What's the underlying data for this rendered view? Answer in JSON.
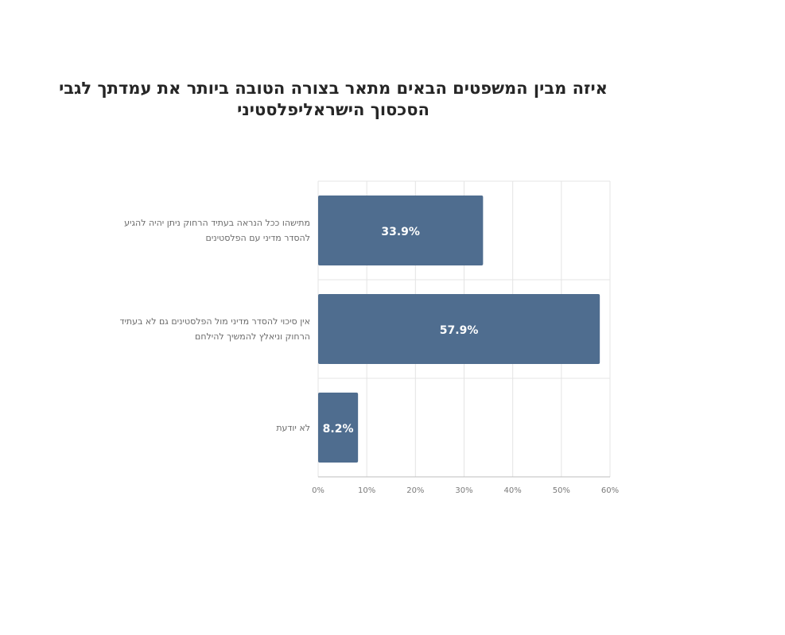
{
  "chart_data": {
    "type": "bar",
    "orientation": "horizontal",
    "title": "איזה מבין המשפטים הבאים מתאר בצורה הטובה ביותר את עמדתך לגבי הסכסוך הישראליפלסטיני",
    "categories": [
      "מתישהו ככל הנראה בעתיד הרחוק ניתן יהיה להגיע להסדר מדיני עם הפלסטינים",
      "אין סיכוי להסדר מדיני מול הפלסטינים גם לא בעתיד הרחוק וניאלץ להמשיך להילחם",
      "לא יודעת"
    ],
    "values": [
      33.9,
      57.9,
      8.2
    ],
    "value_labels": [
      "33.9%",
      "57.9%",
      "8.2%"
    ],
    "xlim": [
      0,
      60
    ],
    "xticks": [
      0,
      10,
      20,
      30,
      40,
      50,
      60
    ],
    "xtick_labels": [
      "0%",
      "10%",
      "20%",
      "30%",
      "40%",
      "50%",
      "60%"
    ],
    "xlabel": "",
    "ylabel": "",
    "grid": true,
    "legend": "none",
    "bar_color": "#4f6d8f",
    "label_color": "#ffffff"
  }
}
